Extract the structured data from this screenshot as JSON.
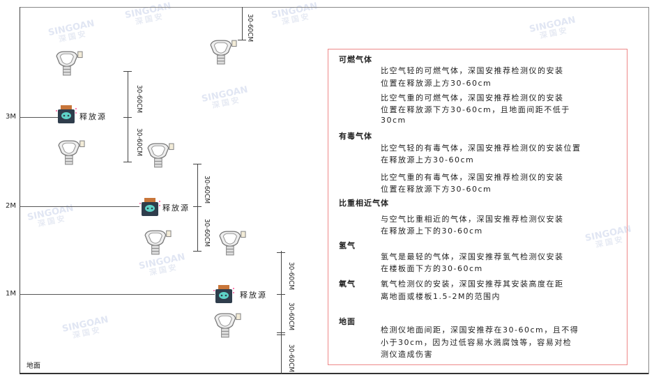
{
  "watermark": {
    "brand": "SINGOAN",
    "cn": "深国安"
  },
  "levels": [
    "3M",
    "2M",
    "1M"
  ],
  "ground_label": "地面",
  "source_label": "释放源",
  "dimension_label": "30-60CM",
  "colors": {
    "box_border": "#e88888",
    "source_body": "#2f3d4c",
    "source_top": "#c8763a",
    "source_face": "#5fd3c8"
  },
  "notes": [
    {
      "heading": "可燃气体",
      "paragraphs": [
        [
          "比空气轻的可燃气体，深国安推荐检测仪的安装",
          "位置在释放源上方30-60cm"
        ],
        [
          "比空气重的可燃气体，深国安推荐检测仪的安装",
          "位置在释放源下方30-60cm，且地面间距不低于",
          "30cm"
        ]
      ]
    },
    {
      "heading": "有毒气体",
      "paragraphs": [
        [
          "比空气轻的有毒气体，深国安推荐检测仪的安装位置",
          "在释放源上方30-60cm"
        ],
        [
          "比空气重的有毒气体，深国安推荐检测仪的安装",
          "位置在释放源下方30-60cm"
        ]
      ]
    },
    {
      "heading": "比重相近气体",
      "paragraphs": [
        [
          "与空气比重相近的气体，深国安推荐检测仪安装",
          "在释放源上下的30-60cm"
        ]
      ]
    },
    {
      "heading": "氢气",
      "paragraphs": [
        [
          "氢气是最轻的气体，深国安推荐氢气检测仪安装",
          "在楼板面下方的30-60cm"
        ]
      ]
    },
    {
      "heading": "氧气",
      "paragraphs": [
        [
          "氧气检测仪的安装，深国安推荐其安装高度在距",
          "离地面或楼板1.5-2M的范围内"
        ]
      ]
    },
    {
      "heading": "地面",
      "paragraphs": [
        [
          "检测仪地面间距，深国安推荐在30-60cm，且不得",
          "小于30cm，因为过低容易水溅腐蚀等，容易对检",
          "测仪造成伤害"
        ]
      ]
    }
  ]
}
